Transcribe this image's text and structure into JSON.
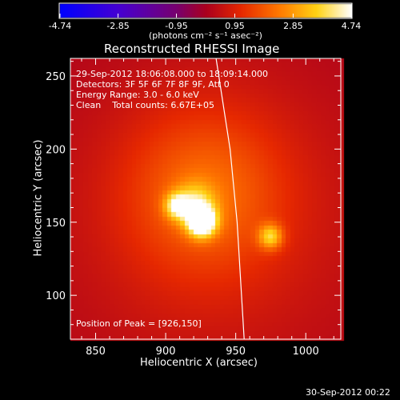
{
  "chart_data": {
    "type": "heatmap",
    "title": "Reconstructed RHESSI Image",
    "xlabel": "Heliocentric X (arcsec)",
    "ylabel": "Heliocentric Y (arcsec)",
    "xlim": [
      832,
      1025
    ],
    "ylim": [
      70,
      262
    ],
    "xticks": [
      850,
      900,
      950,
      1000
    ],
    "yticks": [
      100,
      150,
      200,
      250
    ],
    "colorbar": {
      "range": [
        -4.74,
        4.74
      ],
      "ticks": [
        "-4.74",
        "-2.85",
        "-0.95",
        "0.95",
        "2.85",
        "4.74"
      ],
      "units": "(photons cm⁻² s⁻¹ asec⁻²)"
    },
    "annotations": [
      "29-Sep-2012 18:06:08.000 to 18:09:14.000",
      "Detectors: 3F 5F 6F 7F 8F 9F, Att 0",
      "Energy Range: 3.0 - 6.0 keV",
      "Clean    Total counts: 6.67E+05"
    ],
    "peak_label": "Position of Peak = [926,150]",
    "sources": [
      {
        "x": 926,
        "y": 150,
        "sigma": 7,
        "amp": 1.0
      },
      {
        "x": 908,
        "y": 161,
        "sigma": 6,
        "amp": 0.55
      },
      {
        "x": 921,
        "y": 162,
        "sigma": 10,
        "amp": 0.45
      },
      {
        "x": 975,
        "y": 140,
        "sigma": 6,
        "amp": 0.55
      },
      {
        "x": 928,
        "y": 170,
        "sigma": 40,
        "amp": 0.32
      },
      {
        "x": 935,
        "y": 150,
        "sigma": 95,
        "amp": 0.16
      }
    ],
    "limb_arc": [
      [
        936,
        262
      ],
      [
        946,
        200
      ],
      [
        951,
        150
      ],
      [
        956,
        70
      ]
    ]
  },
  "footer": {
    "date": "30-Sep-2012 00:22"
  }
}
